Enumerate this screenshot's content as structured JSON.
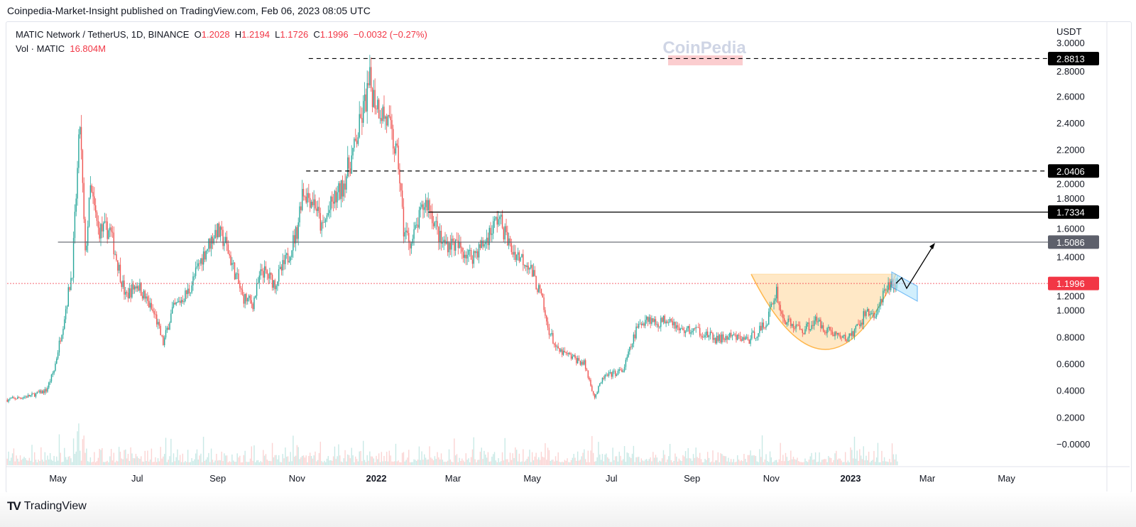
{
  "header": {
    "published": "Coinpedia-Market-Insight published on TradingView.com, Feb 06, 2023 08:05 UTC",
    "symbol": "MATIC Network / TetherUS, 1D, BINANCE",
    "o_label": "O",
    "o": "1.2028",
    "h_label": "H",
    "h": "1.2194",
    "l_label": "L",
    "l": "1.1726",
    "c_label": "C",
    "c": "1.1996",
    "change": "−0.0032 (−0.27%)",
    "vol_label": "Vol · MATIC",
    "vol": "16.804M"
  },
  "watermark": {
    "brand": "CoinPedia",
    "tagline": "FINTECH NEWS"
  },
  "footer": {
    "brand": "TradingView"
  },
  "colors": {
    "up": "#26a69a",
    "down": "#ef5350",
    "cup": "#ffcc80",
    "flag": "#2196f3",
    "last_price": "#f23645"
  },
  "chart_data": {
    "type": "candlestick",
    "currency": "USDT",
    "ylim": [
      0,
      3.0
    ],
    "y_ticks": [
      "3.0000",
      "2.8000",
      "2.6000",
      "2.4000",
      "2.2000",
      "2.0000",
      "1.8000",
      "1.6000",
      "1.4000",
      "1.2000",
      "1.0000",
      "0.8000",
      "0.6000",
      "0.4000",
      "0.2000",
      "−0.0000"
    ],
    "x_ticks": [
      {
        "label": "May",
        "date": "2021-05-01",
        "bold": false
      },
      {
        "label": "Jul",
        "date": "2021-07-01",
        "bold": false
      },
      {
        "label": "Sep",
        "date": "2021-09-01",
        "bold": false
      },
      {
        "label": "Nov",
        "date": "2021-11-01",
        "bold": false
      },
      {
        "label": "2022",
        "date": "2022-01-01",
        "bold": true
      },
      {
        "label": "Mar",
        "date": "2022-03-01",
        "bold": false
      },
      {
        "label": "May",
        "date": "2022-05-01",
        "bold": false
      },
      {
        "label": "Jul",
        "date": "2022-07-01",
        "bold": false
      },
      {
        "label": "Sep",
        "date": "2022-09-01",
        "bold": false
      },
      {
        "label": "Nov",
        "date": "2022-11-01",
        "bold": false
      },
      {
        "label": "2023",
        "date": "2023-01-01",
        "bold": true
      },
      {
        "label": "Mar",
        "date": "2023-03-01",
        "bold": false
      },
      {
        "label": "May",
        "date": "2023-05-01",
        "bold": false
      }
    ],
    "approx_close_path": [
      [
        "2021-03-23",
        0.33
      ],
      [
        "2021-04-10",
        0.36
      ],
      [
        "2021-04-22",
        0.4
      ],
      [
        "2021-04-28",
        0.55
      ],
      [
        "2021-05-05",
        0.9
      ],
      [
        "2021-05-12",
        1.3
      ],
      [
        "2021-05-18",
        2.4
      ],
      [
        "2021-05-22",
        1.4
      ],
      [
        "2021-05-26",
        1.9
      ],
      [
        "2021-06-01",
        1.6
      ],
      [
        "2021-06-10",
        1.6
      ],
      [
        "2021-06-22",
        1.1
      ],
      [
        "2021-07-01",
        1.2
      ],
      [
        "2021-07-15",
        0.95
      ],
      [
        "2021-07-21",
        0.75
      ],
      [
        "2021-07-28",
        1.0
      ],
      [
        "2021-08-10",
        1.15
      ],
      [
        "2021-08-20",
        1.4
      ],
      [
        "2021-08-31",
        1.6
      ],
      [
        "2021-09-07",
        1.5
      ],
      [
        "2021-09-20",
        1.1
      ],
      [
        "2021-09-28",
        1.05
      ],
      [
        "2021-10-05",
        1.3
      ],
      [
        "2021-10-15",
        1.2
      ],
      [
        "2021-10-25",
        1.4
      ],
      [
        "2021-11-01",
        1.6
      ],
      [
        "2021-11-05",
        1.9
      ],
      [
        "2021-11-15",
        1.8
      ],
      [
        "2021-11-20",
        1.6
      ],
      [
        "2021-11-28",
        1.8
      ],
      [
        "2021-12-05",
        1.9
      ],
      [
        "2021-12-15",
        2.2
      ],
      [
        "2021-12-27",
        2.7
      ],
      [
        "2021-12-30",
        2.6
      ],
      [
        "2022-01-10",
        2.4
      ],
      [
        "2022-01-18",
        2.1
      ],
      [
        "2022-01-22",
        1.6
      ],
      [
        "2022-01-28",
        1.5
      ],
      [
        "2022-02-07",
        1.8
      ],
      [
        "2022-02-10",
        1.8
      ],
      [
        "2022-02-20",
        1.5
      ],
      [
        "2022-03-01",
        1.5
      ],
      [
        "2022-03-15",
        1.4
      ],
      [
        "2022-03-25",
        1.5
      ],
      [
        "2022-04-05",
        1.7
      ],
      [
        "2022-04-15",
        1.45
      ],
      [
        "2022-04-28",
        1.35
      ],
      [
        "2022-05-08",
        1.1
      ],
      [
        "2022-05-12",
        0.9
      ],
      [
        "2022-05-20",
        0.7
      ],
      [
        "2022-05-31",
        0.65
      ],
      [
        "2022-06-10",
        0.6
      ],
      [
        "2022-06-18",
        0.35
      ],
      [
        "2022-06-25",
        0.5
      ],
      [
        "2022-07-10",
        0.55
      ],
      [
        "2022-07-20",
        0.85
      ],
      [
        "2022-07-28",
        0.95
      ],
      [
        "2022-08-05",
        0.9
      ],
      [
        "2022-08-15",
        0.95
      ],
      [
        "2022-08-22",
        0.85
      ],
      [
        "2022-09-05",
        0.85
      ],
      [
        "2022-09-20",
        0.78
      ],
      [
        "2022-10-01",
        0.8
      ],
      [
        "2022-10-15",
        0.78
      ],
      [
        "2022-10-28",
        0.9
      ],
      [
        "2022-11-05",
        1.15
      ],
      [
        "2022-11-09",
        0.95
      ],
      [
        "2022-11-15",
        0.9
      ],
      [
        "2022-11-25",
        0.85
      ],
      [
        "2022-12-05",
        0.92
      ],
      [
        "2022-12-15",
        0.85
      ],
      [
        "2022-12-28",
        0.78
      ],
      [
        "2023-01-05",
        0.85
      ],
      [
        "2023-01-14",
        1.0
      ],
      [
        "2023-01-20",
        0.95
      ],
      [
        "2023-01-26",
        1.1
      ],
      [
        "2023-02-01",
        1.2
      ],
      [
        "2023-02-06",
        1.1996
      ]
    ],
    "levels": [
      {
        "value": "2.8813",
        "price": 2.8813,
        "style": "dashed",
        "badge": "#000000",
        "from": "2021-11-10"
      },
      {
        "value": "2.0406",
        "price": 2.0406,
        "style": "dashed",
        "badge": "#000000",
        "from": "2021-11-08"
      },
      {
        "value": "1.7334",
        "price": 1.7334,
        "style": "solid",
        "badge": "#000000",
        "from": "2022-02-10"
      },
      {
        "value": "1.5086",
        "price": 1.5086,
        "style": "solid-gray",
        "badge": "#5d606b",
        "from": "2021-05-01"
      },
      {
        "value": "1.1996",
        "price": 1.1996,
        "style": "dotted-red",
        "badge": "#f23645",
        "from": "2021-03-23"
      }
    ],
    "patterns": [
      "cup-and-handle",
      "bull-flag"
    ],
    "target_price": 1.49
  }
}
